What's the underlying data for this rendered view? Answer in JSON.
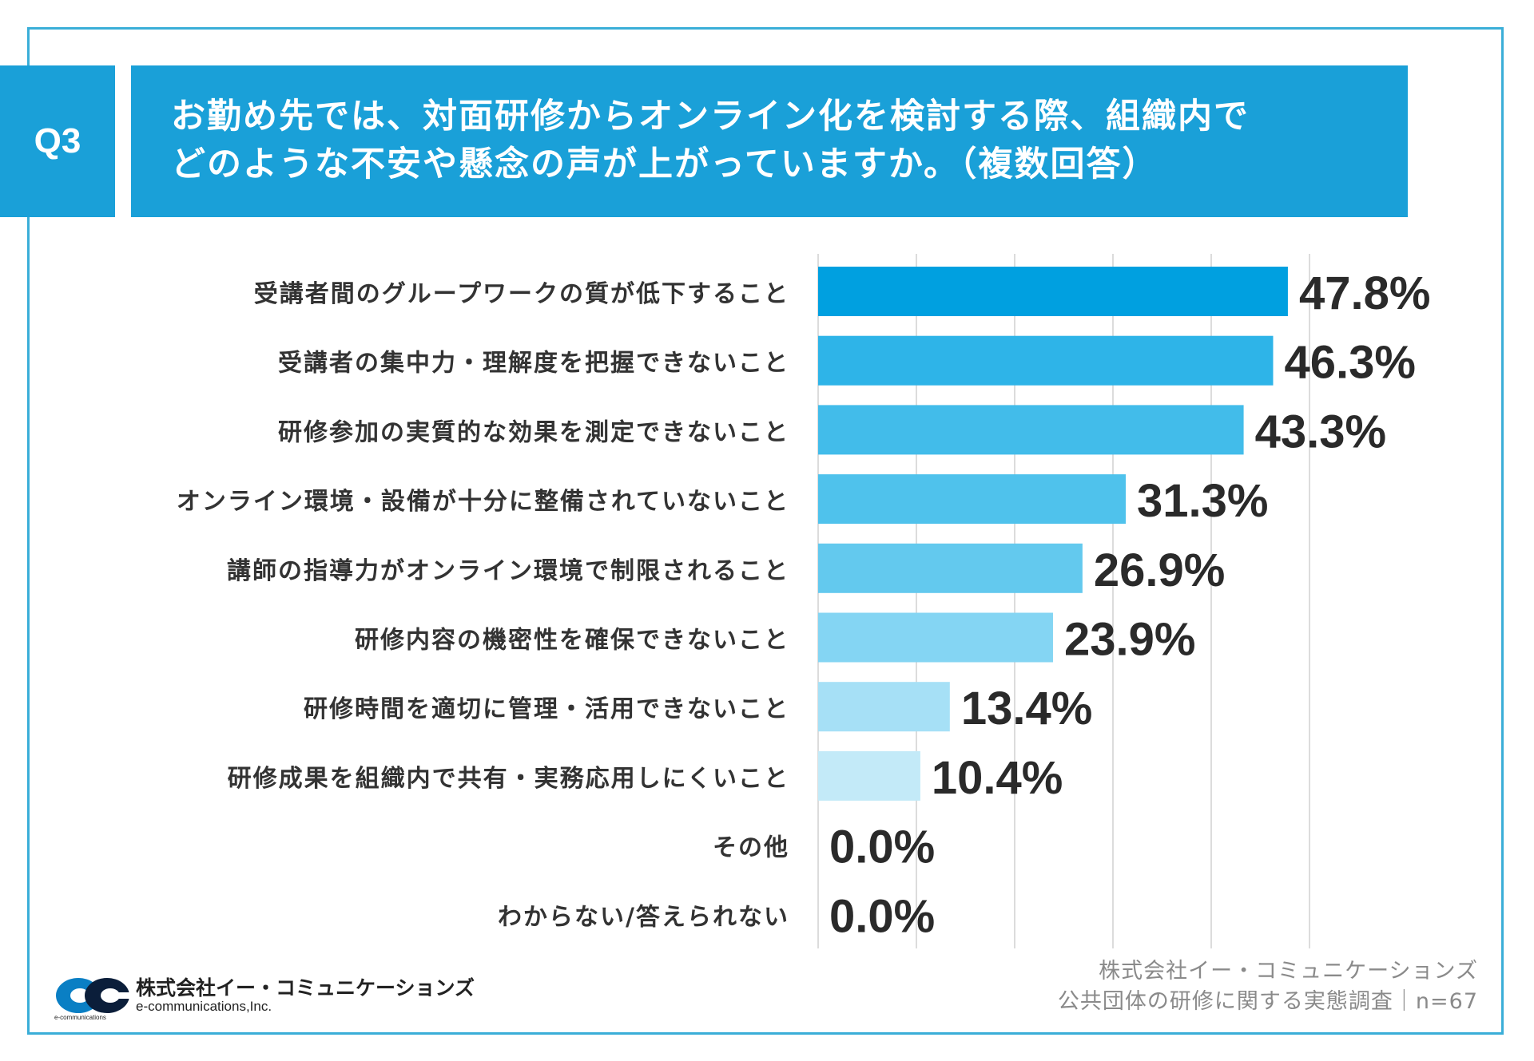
{
  "header": {
    "badge": "Q3",
    "title_line1": "お勤め先では、対面研修からオンライン化を検討する際、組織内で",
    "title_line2": "どのような不安や懸念の声が上がっていますか。（複数回答）"
  },
  "chart_data": {
    "type": "bar",
    "orientation": "horizontal",
    "title": "お勤め先では、対面研修からオンライン化を検討する際、組織内でどのような不安や懸念の声が上がっていますか。（複数回答）",
    "categories": [
      "受講者間のグループワークの質が低下すること",
      "受講者の集中力・理解度を把握できないこと",
      "研修参加の実質的な効果を測定できないこと",
      "オンライン環境・設備が十分に整備されていないこと",
      "講師の指導力がオンライン環境で制限されること",
      "研修内容の機密性を確保できないこと",
      "研修時間を適切に管理・活用できないこと",
      "研修成果を組織内で共有・実務応用しにくいこと",
      "その他",
      "わからない/答えられない"
    ],
    "values": [
      47.8,
      46.3,
      43.3,
      31.3,
      26.9,
      23.9,
      13.4,
      10.4,
      0.0,
      0.0
    ],
    "value_labels": [
      "47.8%",
      "46.3%",
      "43.3%",
      "31.3%",
      "26.9%",
      "23.9%",
      "13.4%",
      "10.4%",
      "0.0%",
      "0.0%"
    ],
    "bar_colors": [
      "#00a0e0",
      "#2eb4e8",
      "#42bcea",
      "#4fc2ec",
      "#63c9ee",
      "#84d5f3",
      "#a6e0f6",
      "#c3eaf8",
      "#d6f0fa",
      "#d6f0fa"
    ],
    "xlim": [
      0,
      60
    ],
    "grid": true,
    "gridlines_at": [
      0,
      10,
      20,
      30,
      40,
      50
    ]
  },
  "source": {
    "company": "株式会社イー・コミュニケーションズ",
    "survey": "公共団体の研修に関する実態調査｜n=67"
  },
  "logo": {
    "name_ja": "株式会社イー・コミュニケーションズ",
    "name_en": "e-communications,Inc.",
    "mark_text": "e-communications"
  },
  "colors": {
    "accent": "#1aa0d8",
    "frame": "#3aaed8",
    "gridline": "#dcdcdc"
  }
}
